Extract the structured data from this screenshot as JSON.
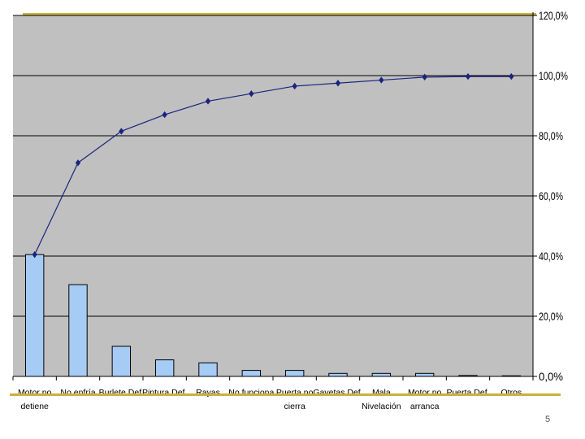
{
  "slide": {
    "page_number": "5"
  },
  "colors": {
    "plot_background": "#c0c0c0",
    "bar_fill": "#a6ccf5",
    "bar_stroke": "#000000",
    "line": "#1a237e",
    "gridline": "#000000",
    "accent": "#c8b23a"
  },
  "chart_data": {
    "type": "bar",
    "categories": [
      [
        "Motor no",
        "detiene"
      ],
      [
        "No enfría"
      ],
      [
        "Burlete Def."
      ],
      [
        "Pintura Def."
      ],
      [
        "Rayas"
      ],
      [
        "No funciona"
      ],
      [
        "Puerta no",
        "cierra"
      ],
      [
        "Gavetas Def."
      ],
      [
        "Mala",
        "Nivelación"
      ],
      [
        "Motor no",
        "arranca"
      ],
      [
        "Puerta Def."
      ],
      [
        "Otros"
      ]
    ],
    "series": [
      {
        "type": "bar",
        "axis": "right",
        "values": [
          40.5,
          30.5,
          10.0,
          5.5,
          4.5,
          2.0,
          2.0,
          1.0,
          1.0,
          1.0,
          0.3,
          0.2
        ]
      },
      {
        "type": "line",
        "axis": "right",
        "marker": "diamond",
        "values": [
          40.5,
          71.0,
          81.5,
          87.0,
          91.5,
          94.0,
          96.5,
          97.5,
          98.5,
          99.5,
          99.7,
          99.7
        ]
      }
    ],
    "y_axis": {
      "position": "right",
      "ylim": [
        0,
        120
      ],
      "ticks": [
        0,
        20,
        40,
        60,
        80,
        100,
        120
      ],
      "tick_labels": [
        "0,0%",
        "20,0%",
        "40,0%",
        "60,0%",
        "80,0%",
        "100,0%",
        "120,0%"
      ]
    },
    "grid": true,
    "legend": "none"
  }
}
